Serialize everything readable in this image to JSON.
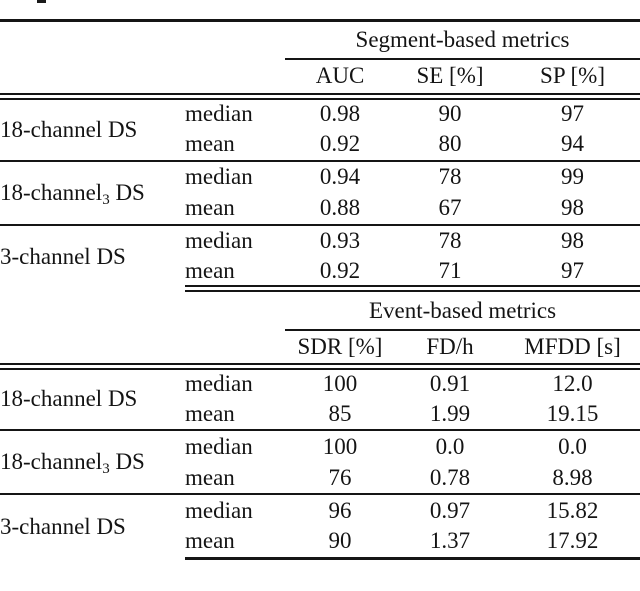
{
  "colors": {
    "background": "#ffffff",
    "text": "#141414",
    "rule": "#151515"
  },
  "stats": {
    "median": "median",
    "mean": "mean"
  },
  "tables": [
    {
      "spanner": "Segment-based metrics",
      "columns": [
        "AUC",
        "SE [%]",
        "SP [%]"
      ],
      "groups": [
        {
          "label_pre": "18-channel",
          "label_sub": "",
          "label_post": " DS",
          "median": [
            "0.98",
            "90",
            "97"
          ],
          "mean": [
            "0.92",
            "80",
            "94"
          ]
        },
        {
          "label_pre": "18-channel",
          "label_sub": "3",
          "label_post": " DS",
          "median": [
            "0.94",
            "78",
            "99"
          ],
          "mean": [
            "0.88",
            "67",
            "98"
          ]
        },
        {
          "label_pre": "3-channel",
          "label_sub": "",
          "label_post": " DS",
          "median": [
            "0.93",
            "78",
            "98"
          ],
          "mean": [
            "0.92",
            "71",
            "97"
          ]
        }
      ]
    },
    {
      "spanner": "Event-based metrics",
      "columns": [
        "SDR [%]",
        "FD/h",
        "MFDD [s]"
      ],
      "groups": [
        {
          "label_pre": "18-channel",
          "label_sub": "",
          "label_post": " DS",
          "median": [
            "100",
            "0.91",
            "12.0"
          ],
          "mean": [
            "85",
            "1.99",
            "19.15"
          ]
        },
        {
          "label_pre": "18-channel",
          "label_sub": "3",
          "label_post": " DS",
          "median": [
            "100",
            "0.0",
            "0.0"
          ],
          "mean": [
            "76",
            "0.78",
            "8.98"
          ]
        },
        {
          "label_pre": "3-channel",
          "label_sub": "",
          "label_post": " DS",
          "median": [
            "96",
            "0.97",
            "15.82"
          ],
          "mean": [
            "90",
            "1.37",
            "17.92"
          ]
        }
      ]
    }
  ]
}
